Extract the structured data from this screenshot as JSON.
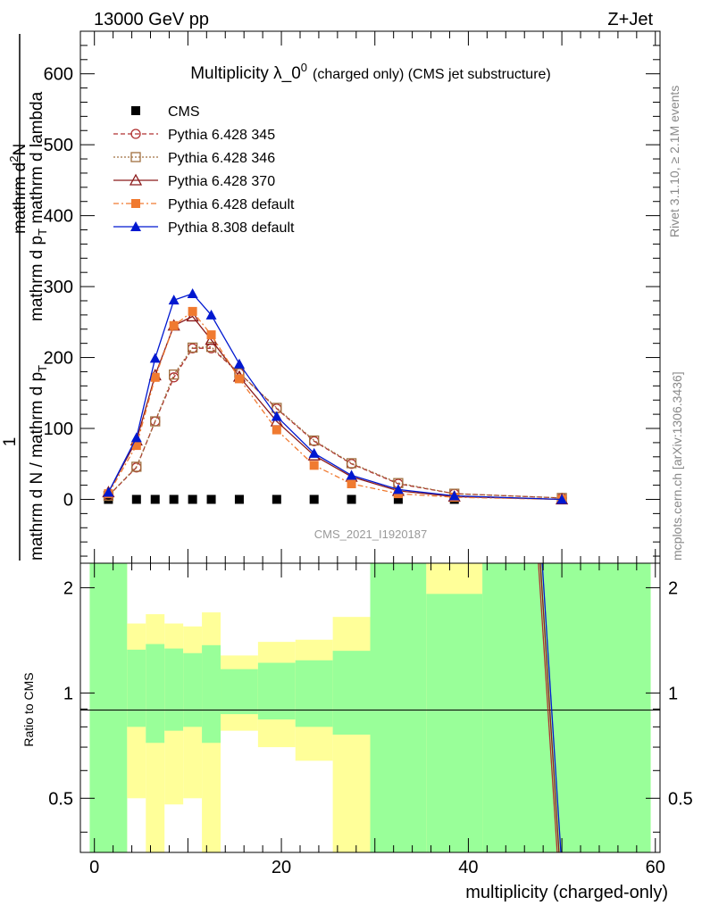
{
  "header": {
    "left": "13000 GeV pp",
    "right": "Z+Jet"
  },
  "chart_data": [
    {
      "type": "line",
      "panel": "main",
      "title_main": "Multiplicity λ_0",
      "title_sup": "0",
      "title_tail": "(charged only) (CMS jet substructure)",
      "ylabel_parts": {
        "lead": "1",
        "left_denominator": "mathrm d N / mathrm d p",
        "left_sub": "T",
        "right_numerator": "mathrm d",
        "right_sup": "2",
        "right_numerator_tail": "N",
        "right_denominator": "mathrm d p",
        "right_sub": "T",
        "right_denominator_tail": " mathrm d lambda"
      },
      "ylim": [
        -90,
        660
      ],
      "xlim": [
        -1.5,
        60.5
      ],
      "yticks": [
        "0",
        "100",
        "200",
        "300",
        "400",
        "500",
        "600"
      ],
      "watermark": "CMS_2021_I1920187",
      "legend_position": "top-left",
      "series": [
        {
          "name": "CMS",
          "color": "#000000",
          "marker": "square",
          "line": "none",
          "x": [
            1.5,
            4.5,
            6.5,
            8.5,
            10.5,
            12.5,
            15.5,
            19.5,
            23.5,
            27.5,
            32.5,
            38.5,
            50.0
          ],
          "y": [
            0,
            0,
            0,
            0,
            0,
            0,
            0,
            0,
            0,
            0,
            0,
            0,
            0
          ]
        },
        {
          "name": "Pythia 6.428 345",
          "color": "#b03030",
          "marker": "circle-open",
          "dash": "5,3",
          "x": [
            1.5,
            4.5,
            6.5,
            8.5,
            10.5,
            12.5,
            15.5,
            19.5,
            23.5,
            27.5,
            32.5,
            38.5,
            50.0
          ],
          "y": [
            5,
            45,
            110,
            172,
            213,
            213,
            178,
            128,
            82,
            50,
            22,
            8,
            2
          ]
        },
        {
          "name": "Pythia 6.428 346",
          "color": "#a07040",
          "marker": "square-open",
          "dash": "2,2",
          "x": [
            1.5,
            4.5,
            6.5,
            8.5,
            10.5,
            12.5,
            15.5,
            19.5,
            23.5,
            27.5,
            32.5,
            38.5,
            50.0
          ],
          "y": [
            5,
            46,
            110,
            176,
            214,
            215,
            178,
            129,
            83,
            51,
            23,
            8,
            2
          ]
        },
        {
          "name": "Pythia 6.428 370",
          "color": "#8b1a1a",
          "marker": "triangle-open",
          "dash": "",
          "x": [
            1.5,
            4.5,
            6.5,
            8.5,
            10.5,
            12.5,
            15.5,
            19.5,
            23.5,
            27.5,
            32.5,
            38.5,
            50.0
          ],
          "y": [
            10,
            83,
            175,
            245,
            258,
            225,
            173,
            110,
            62,
            32,
            12,
            4,
            0
          ]
        },
        {
          "name": "Pythia 6.428 default",
          "color": "#f07a30",
          "marker": "square",
          "dash": "6,3,2,3",
          "x": [
            1.5,
            4.5,
            6.5,
            8.5,
            10.5,
            12.5,
            15.5,
            19.5,
            23.5,
            27.5,
            32.5,
            38.5,
            50.0
          ],
          "y": [
            8,
            76,
            172,
            245,
            265,
            232,
            170,
            98,
            48,
            22,
            8,
            3,
            0
          ]
        },
        {
          "name": "Pythia 8.308 default",
          "color": "#0018d0",
          "marker": "triangle",
          "dash": "",
          "x": [
            1.5,
            4.5,
            6.5,
            8.5,
            10.5,
            12.5,
            15.5,
            19.5,
            23.5,
            27.5,
            32.5,
            38.5,
            50.0
          ],
          "y": [
            10,
            87,
            199,
            281,
            290,
            260,
            191,
            117,
            65,
            34,
            14,
            5,
            0
          ]
        }
      ]
    },
    {
      "type": "area",
      "panel": "ratio",
      "ylabel": "Ratio to CMS",
      "xlabel": "multiplicity (charged-only)",
      "ylim": [
        0.35,
        2.35
      ],
      "xlim": [
        -1.5,
        60.5
      ],
      "xticks": [
        "0",
        "20",
        "40",
        "60"
      ],
      "yticks": [
        "0.5",
        "1",
        "2"
      ],
      "bands": [
        {
          "x0": -0.5,
          "x1": 3.5,
          "green_lo": 0.35,
          "green_hi": 2.35,
          "yellow_lo": 0.35,
          "yellow_hi": 2.35
        },
        {
          "x0": 3.5,
          "x1": 5.5,
          "green_lo": 0.8,
          "green_hi": 1.33,
          "yellow_lo": 0.5,
          "yellow_hi": 1.58
        },
        {
          "x0": 5.5,
          "x1": 7.5,
          "green_lo": 0.72,
          "green_hi": 1.38,
          "yellow_lo": 0.35,
          "yellow_hi": 1.68
        },
        {
          "x0": 7.5,
          "x1": 9.5,
          "green_lo": 0.78,
          "green_hi": 1.34,
          "yellow_lo": 0.48,
          "yellow_hi": 1.58
        },
        {
          "x0": 9.5,
          "x1": 11.5,
          "green_lo": 0.8,
          "green_hi": 1.3,
          "yellow_lo": 0.5,
          "yellow_hi": 1.55
        },
        {
          "x0": 11.5,
          "x1": 13.5,
          "green_lo": 0.72,
          "green_hi": 1.37,
          "yellow_lo": 0.35,
          "yellow_hi": 1.7
        },
        {
          "x0": 13.5,
          "x1": 17.5,
          "green_lo": 0.87,
          "green_hi": 1.17,
          "yellow_lo": 0.78,
          "yellow_hi": 1.28
        },
        {
          "x0": 17.5,
          "x1": 21.5,
          "green_lo": 0.84,
          "green_hi": 1.22,
          "yellow_lo": 0.7,
          "yellow_hi": 1.4
        },
        {
          "x0": 21.5,
          "x1": 25.5,
          "green_lo": 0.8,
          "green_hi": 1.24,
          "yellow_lo": 0.64,
          "yellow_hi": 1.42
        },
        {
          "x0": 25.5,
          "x1": 29.5,
          "green_lo": 0.76,
          "green_hi": 1.32,
          "yellow_lo": 0.35,
          "yellow_hi": 1.65
        },
        {
          "x0": 29.5,
          "x1": 35.5,
          "green_lo": 0.35,
          "green_hi": 2.35,
          "yellow_lo": 0.35,
          "yellow_hi": 2.35
        },
        {
          "x0": 35.5,
          "x1": 41.5,
          "green_lo": 0.35,
          "green_hi": 1.92,
          "yellow_lo": 0.35,
          "yellow_hi": 2.35
        },
        {
          "x0": 41.5,
          "x1": 59.5,
          "green_lo": 0.35,
          "green_hi": 2.35,
          "yellow_lo": 0.35,
          "yellow_hi": 2.35
        }
      ],
      "ratio_lines": [
        {
          "name": "Pythia 6.428 345",
          "color": "#b03030",
          "x": [
            47.5,
            49.5
          ],
          "y": [
            2.35,
            0.35
          ]
        },
        {
          "name": "Pythia 6.428 370",
          "color": "#8b1a1a",
          "x": [
            47.7,
            49.7
          ],
          "y": [
            2.35,
            0.35
          ]
        },
        {
          "name": "Pythia 8.308 default",
          "color": "#0018d0",
          "x": [
            47.9,
            49.9
          ],
          "y": [
            2.35,
            0.35
          ]
        }
      ]
    }
  ],
  "side_labels": {
    "rivet": "Rivet 3.1.10, ≥ 2.1M events",
    "mcplots": "mcplots.cern.ch [arXiv:1306.3436]"
  }
}
